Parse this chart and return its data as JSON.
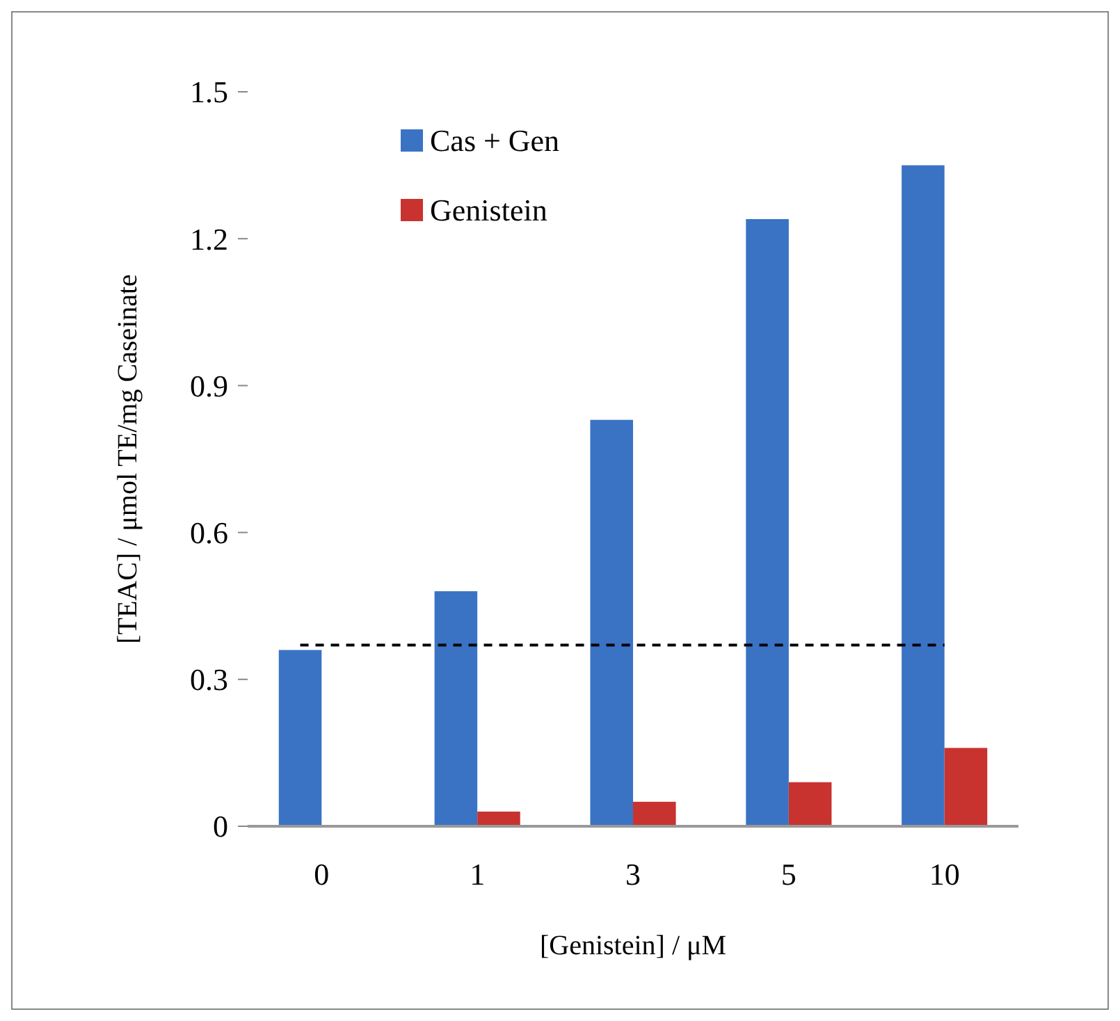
{
  "chart_data": {
    "type": "bar",
    "xlabel": "[Genistein] / μM",
    "ylabel": "[TEAC] / μmol TE/mg Caseinate",
    "categories": [
      "0",
      "1",
      "3",
      "5",
      "10"
    ],
    "series": [
      {
        "name": "Cas + Gen",
        "color": "#3a73c4",
        "values": [
          0.36,
          0.48,
          0.83,
          1.24,
          1.35
        ]
      },
      {
        "name": "Genistein",
        "color": "#c8332f",
        "values": [
          0,
          0.03,
          0.05,
          0.09,
          0.16
        ]
      }
    ],
    "ylim": [
      0,
      1.5
    ],
    "yticks": [
      {
        "value": 0,
        "label": "0"
      },
      0.3,
      0.6,
      0.9,
      1.2,
      1.5
    ],
    "ref_lines": [
      {
        "axis": "y",
        "value": 0.37,
        "color": "#000000",
        "line_style": "dashed"
      }
    ],
    "legend": "top left",
    "grid": false
  }
}
